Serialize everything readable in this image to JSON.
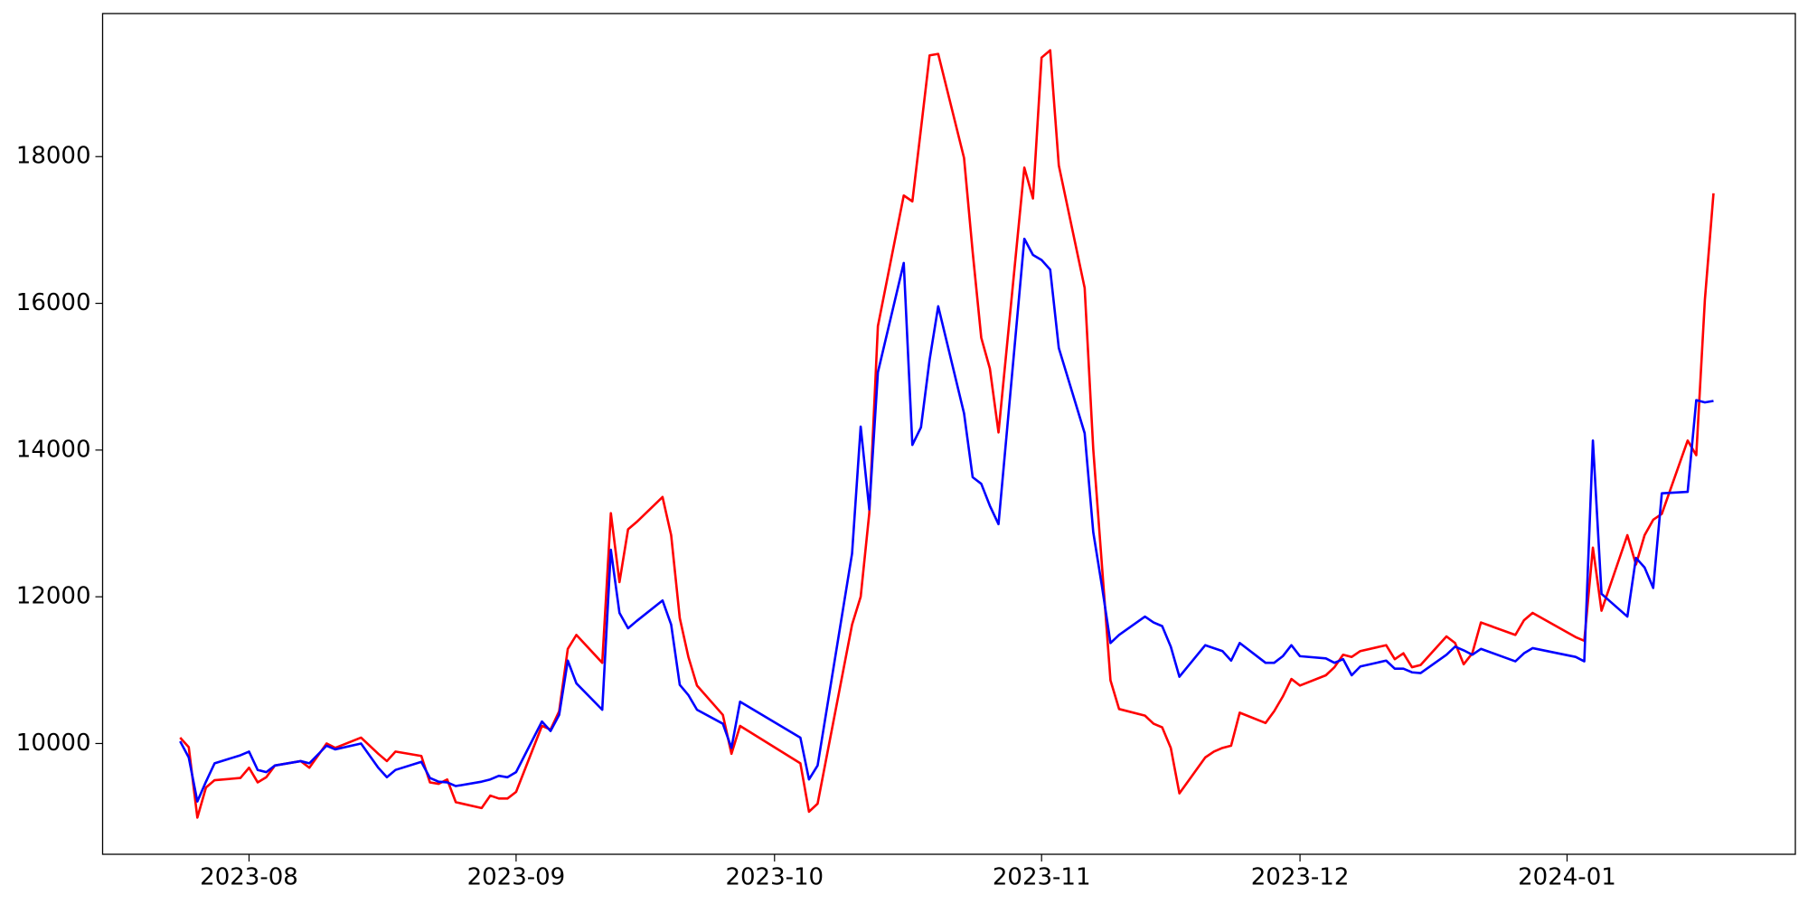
{
  "chart_data": {
    "type": "line",
    "x": [
      -8,
      -7,
      -6,
      -5,
      -4,
      -1,
      0,
      1,
      2,
      3,
      6,
      7,
      9,
      10,
      13,
      15,
      16,
      17,
      20,
      21,
      22,
      23,
      24,
      27,
      28,
      29,
      30,
      31,
      34,
      35,
      36,
      37,
      38,
      41,
      42,
      43,
      44,
      45,
      48,
      49,
      50,
      51,
      52,
      55,
      56,
      57,
      64,
      65,
      66,
      70,
      71,
      72,
      73,
      76,
      77,
      78,
      79,
      80,
      83,
      84,
      85,
      86,
      87,
      90,
      91,
      92,
      93,
      94,
      97,
      98,
      99,
      100,
      101,
      104,
      105,
      106,
      107,
      108,
      111,
      112,
      113,
      114,
      115,
      118,
      119,
      120,
      121,
      122,
      125,
      126,
      127,
      128,
      129,
      132,
      133,
      134,
      135,
      136,
      139,
      140,
      141,
      142,
      143,
      147,
      148,
      149,
      154,
      155,
      156,
      157,
      160,
      161,
      162,
      163,
      164,
      167,
      168,
      169,
      170
    ],
    "series": [
      {
        "color": "#ff0000",
        "values": [
          10080,
          9950,
          8990,
          9400,
          9500,
          9530,
          9670,
          9470,
          9540,
          9700,
          9760,
          9670,
          10000,
          9940,
          10080,
          9860,
          9760,
          9890,
          9830,
          9470,
          9450,
          9510,
          9200,
          9120,
          9290,
          9250,
          9250,
          9340,
          10240,
          10190,
          10440,
          11290,
          11480,
          11100,
          13140,
          12200,
          12920,
          13020,
          13360,
          12840,
          11710,
          11180,
          10790,
          10390,
          9860,
          10240,
          9730,
          9070,
          9180,
          11620,
          12000,
          13140,
          15690,
          17470,
          17390,
          18380,
          19380,
          19400,
          17980,
          16700,
          15530,
          15110,
          14240,
          17850,
          17430,
          19350,
          19450,
          17880,
          16210,
          14010,
          12440,
          10860,
          10470,
          10380,
          10270,
          10220,
          9940,
          9320,
          9810,
          9890,
          9940,
          9970,
          10420,
          10280,
          10440,
          10640,
          10880,
          10790,
          10930,
          11040,
          11210,
          11180,
          11260,
          11340,
          11150,
          11230,
          11040,
          11070,
          11460,
          11370,
          11080,
          11230,
          11650,
          11480,
          11680,
          11780,
          11450,
          11400,
          12670,
          11810,
          12840,
          12440,
          12840,
          13050,
          13130,
          14130,
          13930,
          16050,
          17500
        ]
      },
      {
        "color": "#0000ff",
        "values": [
          10030,
          9810,
          9210,
          9480,
          9730,
          9840,
          9890,
          9640,
          9610,
          9700,
          9760,
          9730,
          9970,
          9920,
          10000,
          9670,
          9540,
          9640,
          9750,
          9530,
          9480,
          9470,
          9420,
          9480,
          9510,
          9560,
          9540,
          9610,
          10300,
          10170,
          10390,
          11130,
          10820,
          10460,
          12640,
          11780,
          11570,
          11670,
          11950,
          11620,
          10800,
          10660,
          10460,
          10270,
          9940,
          10570,
          10080,
          9510,
          9700,
          12590,
          14320,
          13190,
          15060,
          16550,
          14070,
          14310,
          15230,
          15960,
          14500,
          13630,
          13540,
          13240,
          12990,
          16880,
          16660,
          16590,
          16460,
          15390,
          14230,
          12880,
          12150,
          11370,
          11480,
          11730,
          11650,
          11600,
          11320,
          10910,
          11340,
          11300,
          11260,
          11130,
          11370,
          11100,
          11100,
          11190,
          11340,
          11190,
          11160,
          11100,
          11150,
          10930,
          11050,
          11130,
          11020,
          11020,
          10970,
          10960,
          11210,
          11320,
          11270,
          11210,
          11290,
          11120,
          11230,
          11300,
          11180,
          11120,
          14130,
          12040,
          11730,
          12530,
          12400,
          12120,
          13410,
          13430,
          14680,
          14650,
          14670
        ]
      }
    ],
    "xlim": [
      -17,
      179.5
    ],
    "xticks": [
      {
        "value": 0,
        "label": "2023-08"
      },
      {
        "value": 31,
        "label": "2023-09"
      },
      {
        "value": 61,
        "label": "2023-10"
      },
      {
        "value": 92,
        "label": "2023-11"
      },
      {
        "value": 122,
        "label": "2023-12"
      },
      {
        "value": 153,
        "label": "2024-01"
      }
    ],
    "ylim": [
      8490,
      19950
    ],
    "yticks": [
      10000,
      12000,
      14000,
      16000,
      18000
    ],
    "grid": false
  }
}
